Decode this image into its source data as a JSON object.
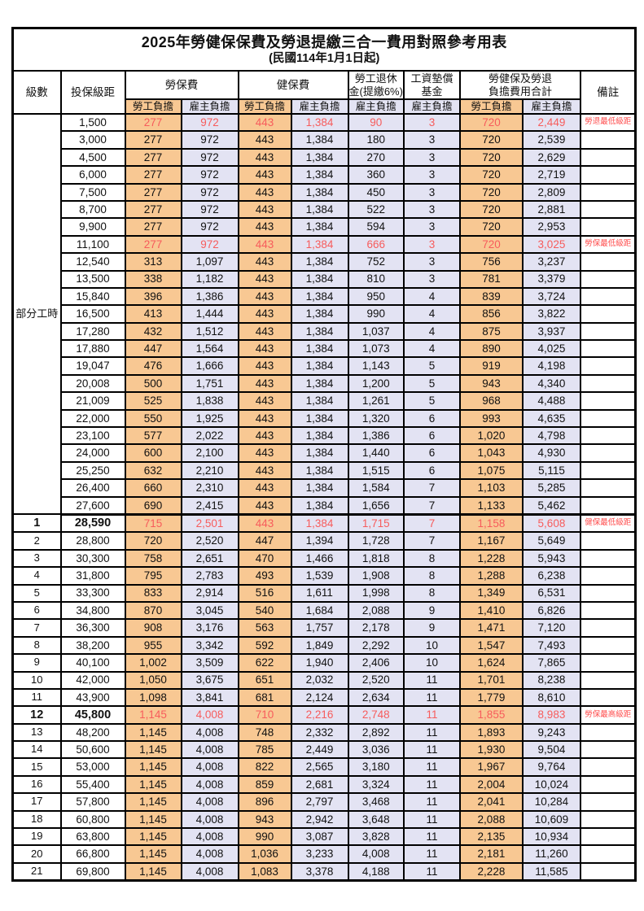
{
  "title": "2025年勞健保保費及勞退提繳三合一費用對照參考用表",
  "subtitle": "(民國114年1月1日起)",
  "header": {
    "level": "級數",
    "salary_bracket": "投保級距",
    "labor_insurance": "勞保費",
    "health_insurance": "健保費",
    "pension_line1": "勞工退休",
    "pension_line2": "金(提繳6%)",
    "wage_fund_line1": "工資墊償",
    "wage_fund_line2": "基金",
    "total_line1": "勞健保及勞退",
    "total_line2": "負擔費用合計",
    "note": "備註",
    "worker_share": "勞工負擔",
    "employer_share": "雇主負擔"
  },
  "section_label": "部分工時",
  "colors": {
    "worker_bg": "#F8C893",
    "employer_bg": "#E3E3F3",
    "red_value": "#F75C5C",
    "red_note": "#FF4D4D",
    "border": "#000000"
  },
  "rows": [
    {
      "lv": "",
      "salary": "1,500",
      "v": [
        "277",
        "972",
        "443",
        "1,384",
        "90",
        "3",
        "720",
        "2,449"
      ],
      "note": "勞退最低級距",
      "red": true,
      "bold": false
    },
    {
      "lv": "",
      "salary": "3,000",
      "v": [
        "277",
        "972",
        "443",
        "1,384",
        "180",
        "3",
        "720",
        "2,539"
      ],
      "note": "",
      "red": false,
      "bold": false
    },
    {
      "lv": "",
      "salary": "4,500",
      "v": [
        "277",
        "972",
        "443",
        "1,384",
        "270",
        "3",
        "720",
        "2,629"
      ],
      "note": "",
      "red": false,
      "bold": false
    },
    {
      "lv": "",
      "salary": "6,000",
      "v": [
        "277",
        "972",
        "443",
        "1,384",
        "360",
        "3",
        "720",
        "2,719"
      ],
      "note": "",
      "red": false,
      "bold": false
    },
    {
      "lv": "",
      "salary": "7,500",
      "v": [
        "277",
        "972",
        "443",
        "1,384",
        "450",
        "3",
        "720",
        "2,809"
      ],
      "note": "",
      "red": false,
      "bold": false
    },
    {
      "lv": "",
      "salary": "8,700",
      "v": [
        "277",
        "972",
        "443",
        "1,384",
        "522",
        "3",
        "720",
        "2,881"
      ],
      "note": "",
      "red": false,
      "bold": false
    },
    {
      "lv": "",
      "salary": "9,900",
      "v": [
        "277",
        "972",
        "443",
        "1,384",
        "594",
        "3",
        "720",
        "2,953"
      ],
      "note": "",
      "red": false,
      "bold": false
    },
    {
      "lv": "",
      "salary": "11,100",
      "v": [
        "277",
        "972",
        "443",
        "1,384",
        "666",
        "3",
        "720",
        "3,025"
      ],
      "note": "勞保最低級距",
      "red": true,
      "bold": false
    },
    {
      "lv": "",
      "salary": "12,540",
      "v": [
        "313",
        "1,097",
        "443",
        "1,384",
        "752",
        "3",
        "756",
        "3,237"
      ],
      "note": "",
      "red": false,
      "bold": false
    },
    {
      "lv": "",
      "salary": "13,500",
      "v": [
        "338",
        "1,182",
        "443",
        "1,384",
        "810",
        "3",
        "781",
        "3,379"
      ],
      "note": "",
      "red": false,
      "bold": false
    },
    {
      "lv": "",
      "salary": "15,840",
      "v": [
        "396",
        "1,386",
        "443",
        "1,384",
        "950",
        "4",
        "839",
        "3,724"
      ],
      "note": "",
      "red": false,
      "bold": false
    },
    {
      "lv": "",
      "salary": "16,500",
      "v": [
        "413",
        "1,444",
        "443",
        "1,384",
        "990",
        "4",
        "856",
        "3,822"
      ],
      "note": "",
      "red": false,
      "bold": false
    },
    {
      "lv": "",
      "salary": "17,280",
      "v": [
        "432",
        "1,512",
        "443",
        "1,384",
        "1,037",
        "4",
        "875",
        "3,937"
      ],
      "note": "",
      "red": false,
      "bold": false
    },
    {
      "lv": "",
      "salary": "17,880",
      "v": [
        "447",
        "1,564",
        "443",
        "1,384",
        "1,073",
        "4",
        "890",
        "4,025"
      ],
      "note": "",
      "red": false,
      "bold": false
    },
    {
      "lv": "",
      "salary": "19,047",
      "v": [
        "476",
        "1,666",
        "443",
        "1,384",
        "1,143",
        "5",
        "919",
        "4,198"
      ],
      "note": "",
      "red": false,
      "bold": false
    },
    {
      "lv": "",
      "salary": "20,008",
      "v": [
        "500",
        "1,751",
        "443",
        "1,384",
        "1,200",
        "5",
        "943",
        "4,340"
      ],
      "note": "",
      "red": false,
      "bold": false
    },
    {
      "lv": "",
      "salary": "21,009",
      "v": [
        "525",
        "1,838",
        "443",
        "1,384",
        "1,261",
        "5",
        "968",
        "4,488"
      ],
      "note": "",
      "red": false,
      "bold": false
    },
    {
      "lv": "",
      "salary": "22,000",
      "v": [
        "550",
        "1,925",
        "443",
        "1,384",
        "1,320",
        "6",
        "993",
        "4,635"
      ],
      "note": "",
      "red": false,
      "bold": false
    },
    {
      "lv": "",
      "salary": "23,100",
      "v": [
        "577",
        "2,022",
        "443",
        "1,384",
        "1,386",
        "6",
        "1,020",
        "4,798"
      ],
      "note": "",
      "red": false,
      "bold": false
    },
    {
      "lv": "",
      "salary": "24,000",
      "v": [
        "600",
        "2,100",
        "443",
        "1,384",
        "1,440",
        "6",
        "1,043",
        "4,930"
      ],
      "note": "",
      "red": false,
      "bold": false
    },
    {
      "lv": "",
      "salary": "25,250",
      "v": [
        "632",
        "2,210",
        "443",
        "1,384",
        "1,515",
        "6",
        "1,075",
        "5,115"
      ],
      "note": "",
      "red": false,
      "bold": false
    },
    {
      "lv": "",
      "salary": "26,400",
      "v": [
        "660",
        "2,310",
        "443",
        "1,384",
        "1,584",
        "7",
        "1,103",
        "5,285"
      ],
      "note": "",
      "red": false,
      "bold": false
    },
    {
      "lv": "",
      "salary": "27,600",
      "v": [
        "690",
        "2,415",
        "443",
        "1,384",
        "1,656",
        "7",
        "1,133",
        "5,462"
      ],
      "note": "",
      "red": false,
      "bold": false
    },
    {
      "lv": "1",
      "salary": "28,590",
      "v": [
        "715",
        "2,501",
        "443",
        "1,384",
        "1,715",
        "7",
        "1,158",
        "5,608"
      ],
      "note": "健保最低級距",
      "red": true,
      "bold": true
    },
    {
      "lv": "2",
      "salary": "28,800",
      "v": [
        "720",
        "2,520",
        "447",
        "1,394",
        "1,728",
        "7",
        "1,167",
        "5,649"
      ],
      "note": "",
      "red": false,
      "bold": false
    },
    {
      "lv": "3",
      "salary": "30,300",
      "v": [
        "758",
        "2,651",
        "470",
        "1,466",
        "1,818",
        "8",
        "1,228",
        "5,943"
      ],
      "note": "",
      "red": false,
      "bold": false
    },
    {
      "lv": "4",
      "salary": "31,800",
      "v": [
        "795",
        "2,783",
        "493",
        "1,539",
        "1,908",
        "8",
        "1,288",
        "6,238"
      ],
      "note": "",
      "red": false,
      "bold": false
    },
    {
      "lv": "5",
      "salary": "33,300",
      "v": [
        "833",
        "2,914",
        "516",
        "1,611",
        "1,998",
        "8",
        "1,349",
        "6,531"
      ],
      "note": "",
      "red": false,
      "bold": false
    },
    {
      "lv": "6",
      "salary": "34,800",
      "v": [
        "870",
        "3,045",
        "540",
        "1,684",
        "2,088",
        "9",
        "1,410",
        "6,826"
      ],
      "note": "",
      "red": false,
      "bold": false
    },
    {
      "lv": "7",
      "salary": "36,300",
      "v": [
        "908",
        "3,176",
        "563",
        "1,757",
        "2,178",
        "9",
        "1,471",
        "7,120"
      ],
      "note": "",
      "red": false,
      "bold": false
    },
    {
      "lv": "8",
      "salary": "38,200",
      "v": [
        "955",
        "3,342",
        "592",
        "1,849",
        "2,292",
        "10",
        "1,547",
        "7,493"
      ],
      "note": "",
      "red": false,
      "bold": false
    },
    {
      "lv": "9",
      "salary": "40,100",
      "v": [
        "1,002",
        "3,509",
        "622",
        "1,940",
        "2,406",
        "10",
        "1,624",
        "7,865"
      ],
      "note": "",
      "red": false,
      "bold": false
    },
    {
      "lv": "10",
      "salary": "42,000",
      "v": [
        "1,050",
        "3,675",
        "651",
        "2,032",
        "2,520",
        "11",
        "1,701",
        "8,238"
      ],
      "note": "",
      "red": false,
      "bold": false
    },
    {
      "lv": "11",
      "salary": "43,900",
      "v": [
        "1,098",
        "3,841",
        "681",
        "2,124",
        "2,634",
        "11",
        "1,779",
        "8,610"
      ],
      "note": "",
      "red": false,
      "bold": false
    },
    {
      "lv": "12",
      "salary": "45,800",
      "v": [
        "1,145",
        "4,008",
        "710",
        "2,216",
        "2,748",
        "11",
        "1,855",
        "8,983"
      ],
      "note": "勞保最高級距",
      "red": true,
      "bold": true
    },
    {
      "lv": "13",
      "salary": "48,200",
      "v": [
        "1,145",
        "4,008",
        "748",
        "2,332",
        "2,892",
        "11",
        "1,893",
        "9,243"
      ],
      "note": "",
      "red": false,
      "bold": false
    },
    {
      "lv": "14",
      "salary": "50,600",
      "v": [
        "1,145",
        "4,008",
        "785",
        "2,449",
        "3,036",
        "11",
        "1,930",
        "9,504"
      ],
      "note": "",
      "red": false,
      "bold": false
    },
    {
      "lv": "15",
      "salary": "53,000",
      "v": [
        "1,145",
        "4,008",
        "822",
        "2,565",
        "3,180",
        "11",
        "1,967",
        "9,764"
      ],
      "note": "",
      "red": false,
      "bold": false
    },
    {
      "lv": "16",
      "salary": "55,400",
      "v": [
        "1,145",
        "4,008",
        "859",
        "2,681",
        "3,324",
        "11",
        "2,004",
        "10,024"
      ],
      "note": "",
      "red": false,
      "bold": false
    },
    {
      "lv": "17",
      "salary": "57,800",
      "v": [
        "1,145",
        "4,008",
        "896",
        "2,797",
        "3,468",
        "11",
        "2,041",
        "10,284"
      ],
      "note": "",
      "red": false,
      "bold": false
    },
    {
      "lv": "18",
      "salary": "60,800",
      "v": [
        "1,145",
        "4,008",
        "943",
        "2,942",
        "3,648",
        "11",
        "2,088",
        "10,609"
      ],
      "note": "",
      "red": false,
      "bold": false
    },
    {
      "lv": "19",
      "salary": "63,800",
      "v": [
        "1,145",
        "4,008",
        "990",
        "3,087",
        "3,828",
        "11",
        "2,135",
        "10,934"
      ],
      "note": "",
      "red": false,
      "bold": false
    },
    {
      "lv": "20",
      "salary": "66,800",
      "v": [
        "1,145",
        "4,008",
        "1,036",
        "3,233",
        "4,008",
        "11",
        "2,181",
        "11,260"
      ],
      "note": "",
      "red": false,
      "bold": false
    },
    {
      "lv": "21",
      "salary": "69,800",
      "v": [
        "1,145",
        "4,008",
        "1,083",
        "3,378",
        "4,188",
        "11",
        "2,228",
        "11,585"
      ],
      "note": "",
      "red": false,
      "bold": false
    }
  ]
}
